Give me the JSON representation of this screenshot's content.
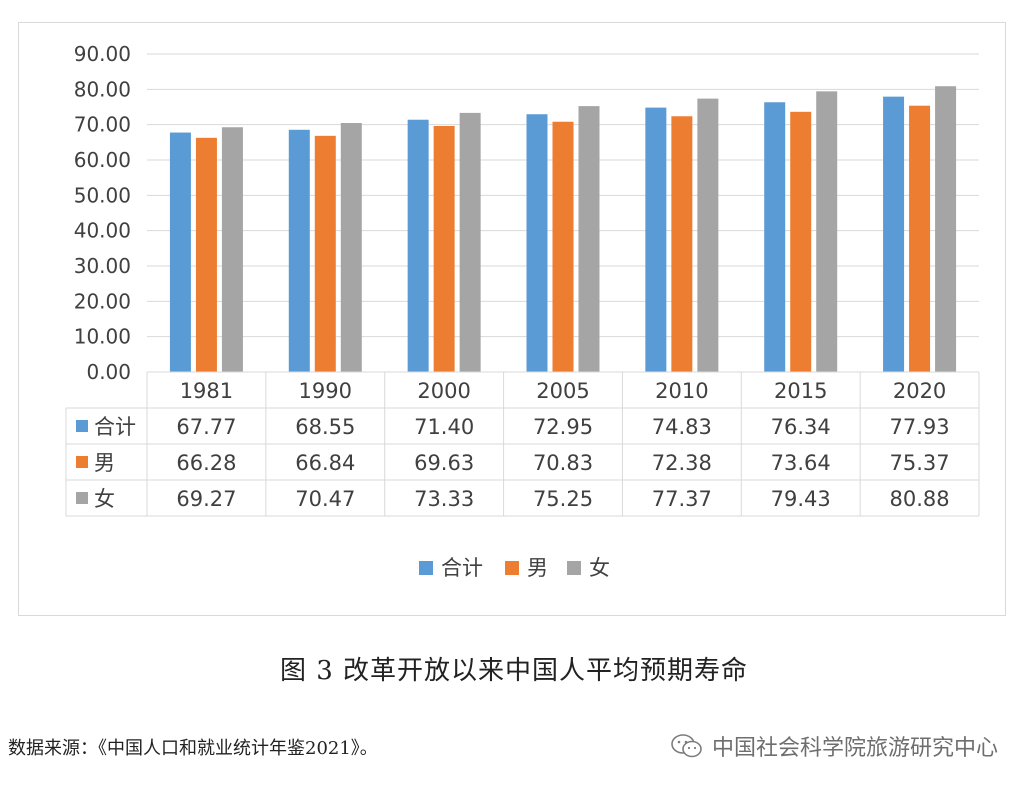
{
  "chart_data": {
    "type": "bar",
    "categories": [
      "1981",
      "1990",
      "2000",
      "2005",
      "2010",
      "2015",
      "2020"
    ],
    "series": [
      {
        "name": "合计",
        "color": "#5b9bd5",
        "values": [
          67.77,
          68.55,
          71.4,
          72.95,
          74.83,
          76.34,
          77.93
        ]
      },
      {
        "name": "男",
        "color": "#ed7d31",
        "values": [
          66.28,
          66.84,
          69.63,
          70.83,
          72.38,
          73.64,
          75.37
        ]
      },
      {
        "name": "女",
        "color": "#a5a5a5",
        "values": [
          69.27,
          70.47,
          73.33,
          75.25,
          77.37,
          79.43,
          80.88
        ]
      }
    ],
    "y_ticks": [
      "0.00",
      "10.00",
      "20.00",
      "30.00",
      "40.00",
      "50.00",
      "60.00",
      "70.00",
      "80.00",
      "90.00"
    ],
    "ylim": [
      0,
      90
    ],
    "grid": true,
    "legend": "bottom",
    "data_table": true,
    "table_values": [
      [
        "67.77",
        "68.55",
        "71.40",
        "72.95",
        "74.83",
        "76.34",
        "77.93"
      ],
      [
        "66.28",
        "66.84",
        "69.63",
        "70.83",
        "72.38",
        "73.64",
        "75.37"
      ],
      [
        "69.27",
        "70.47",
        "73.33",
        "75.25",
        "77.37",
        "79.43",
        "80.88"
      ]
    ]
  },
  "caption": "图 3  改革开放以来中国人平均预期寿命",
  "source": "数据来源：《中国人口和就业统计年鉴2021》。",
  "watermark": {
    "text": "中国社会科学院旅游研究中心",
    "icon": "wechat-icon"
  }
}
